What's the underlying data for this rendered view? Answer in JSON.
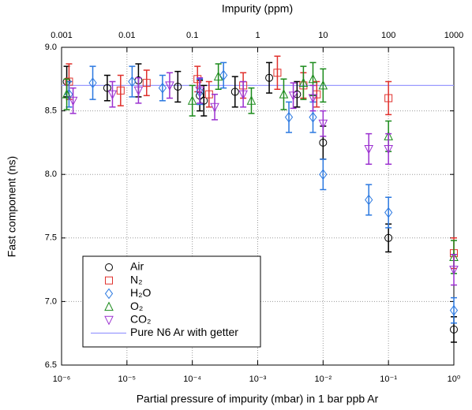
{
  "chart_data": {
    "type": "scatter",
    "xlabel": "Partial pressure of impurity (mbar) in 1 bar ppb Ar",
    "ylabel": "Fast component (ns)",
    "x2label": "Impurity (ppm)",
    "xscale": "log",
    "xlim": [
      1e-06,
      1
    ],
    "xticks": [
      {
        "value": 1e-06,
        "label": "10⁻⁶"
      },
      {
        "value": 1e-05,
        "label": "10⁻⁵"
      },
      {
        "value": 0.0001,
        "label": "10⁻⁴"
      },
      {
        "value": 0.001,
        "label": "10⁻³"
      },
      {
        "value": 0.01,
        "label": "10⁻²"
      },
      {
        "value": 0.1,
        "label": "10⁻¹"
      },
      {
        "value": 1,
        "label": "10⁰"
      }
    ],
    "x2lim": [
      0.001,
      1000
    ],
    "x2ticks": [
      0.001,
      0.01,
      0.1,
      1,
      10,
      100,
      1000
    ],
    "ylim": [
      6.5,
      9
    ],
    "yticks": [
      6.5,
      {
        "value": 7,
        "label": "7.0"
      },
      7.5,
      {
        "value": 8,
        "label": "8.0"
      },
      8.5,
      {
        "value": 9,
        "label": "9.0"
      }
    ],
    "grid": true,
    "legend": "lower left",
    "series": [
      {
        "name": "Air",
        "color": "#000000",
        "marker": "circle",
        "x": [
          1.2e-06,
          5e-06,
          1.5e-05,
          6e-05,
          0.00013,
          0.00015,
          0.00045,
          0.0015,
          0.004,
          0.01,
          0.1,
          1
        ],
        "values": [
          8.73,
          8.68,
          8.74,
          8.69,
          8.62,
          8.58,
          8.65,
          8.76,
          8.63,
          8.25,
          7.5,
          6.78
        ],
        "errors": [
          0.12,
          0.1,
          0.13,
          0.12,
          0.12,
          0.12,
          0.12,
          0.12,
          0.1,
          0.13,
          0.11,
          0.1
        ]
      },
      {
        "name": "N₂",
        "color": "#e0302c",
        "marker": "square",
        "x": [
          1.3e-06,
          8e-06,
          2e-05,
          0.00012,
          0.00018,
          0.0006,
          0.002,
          0.005,
          0.008,
          0.1,
          1
        ],
        "values": [
          8.73,
          8.66,
          8.72,
          8.75,
          8.63,
          8.7,
          8.8,
          8.7,
          8.63,
          8.6,
          7.38
        ],
        "errors": [
          0.14,
          0.12,
          0.1,
          0.1,
          0.1,
          0.1,
          0.13,
          0.1,
          0.1,
          0.13,
          0.12
        ]
      },
      {
        "name": "H₂O",
        "color": "#2a78e0",
        "marker": "diamond",
        "x": [
          1.3e-06,
          3e-06,
          1.2e-05,
          3.5e-05,
          0.00013,
          0.0003,
          0.003,
          0.007,
          0.01,
          0.05,
          0.1,
          1
        ],
        "values": [
          8.63,
          8.72,
          8.73,
          8.68,
          8.65,
          8.78,
          8.45,
          8.45,
          8.0,
          7.8,
          7.7,
          6.93
        ],
        "errors": [
          0.1,
          0.13,
          0.12,
          0.1,
          0.1,
          0.1,
          0.12,
          0.12,
          0.12,
          0.12,
          0.12,
          0.1
        ]
      },
      {
        "name": "O₂",
        "color": "#1a8a1a",
        "marker": "triangle",
        "x": [
          1.2e-06,
          0.0001,
          0.00025,
          0.0008,
          0.0025,
          0.005,
          0.007,
          0.01,
          0.1,
          1
        ],
        "values": [
          8.63,
          8.58,
          8.77,
          8.58,
          8.63,
          8.72,
          8.75,
          8.7,
          8.3,
          7.35
        ],
        "errors": [
          0.12,
          0.12,
          0.1,
          0.1,
          0.12,
          0.13,
          0.13,
          0.13,
          0.12,
          0.13
        ]
      },
      {
        "name": "CO₂",
        "color": "#9b30d0",
        "marker": "triangle-down",
        "x": [
          1.5e-06,
          6e-06,
          1.5e-05,
          4.5e-05,
          0.00013,
          0.00022,
          0.0006,
          0.0035,
          0.007,
          0.01,
          0.05,
          0.1,
          1
        ],
        "values": [
          8.58,
          8.63,
          8.66,
          8.7,
          8.66,
          8.53,
          8.63,
          8.62,
          8.6,
          8.4,
          8.2,
          8.2,
          7.25
        ],
        "errors": [
          0.1,
          0.1,
          0.1,
          0.1,
          0.1,
          0.1,
          0.1,
          0.1,
          0.1,
          0.1,
          0.12,
          0.12,
          0.12
        ]
      }
    ],
    "reference_line": {
      "name": "Pure N6 Ar with getter",
      "value": 8.7,
      "color": "#9999ff",
      "label_color": "#0000cc"
    }
  }
}
